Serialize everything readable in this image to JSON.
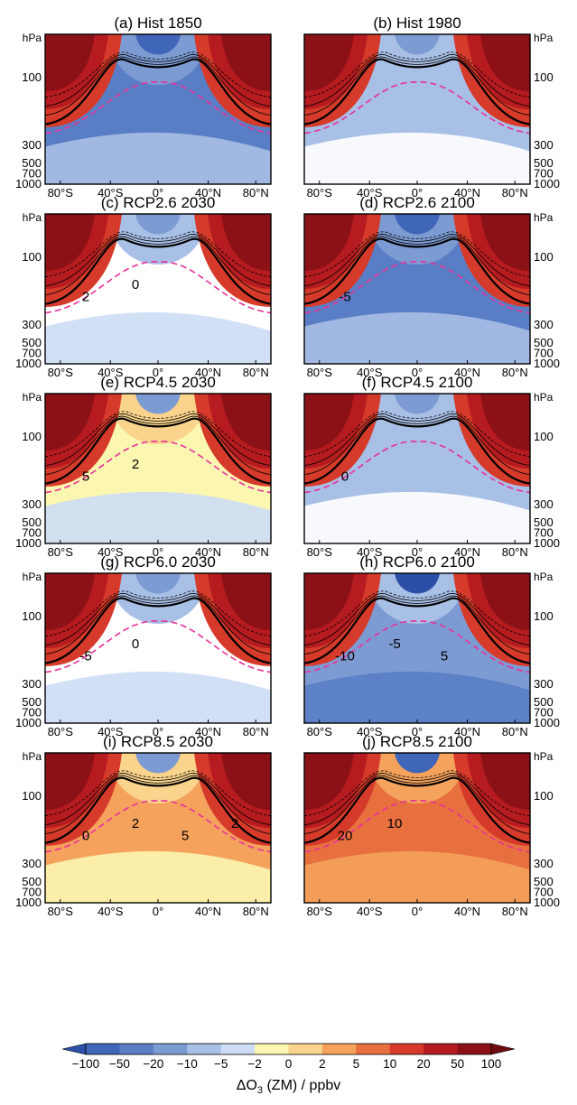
{
  "figure": {
    "colorbar_label_prefix": "ΔO",
    "colorbar_label_sub": "3",
    "colorbar_label_suffix": " (ZM) / ppbv"
  },
  "chart_data": [
    {
      "type": "heatmap",
      "title": "(a) Hist 1850",
      "fill": "neg",
      "xticks": [
        "80°S",
        "40°S",
        "0°",
        "40°N",
        "80°N"
      ],
      "yaxis_unit": "hPa",
      "yticks": [
        "100",
        "300",
        "500",
        "700",
        "1000"
      ],
      "contour_labels": []
    },
    {
      "type": "heatmap",
      "title": "(b) Hist 1980",
      "fill": "lightneg",
      "xticks": [
        "80°S",
        "40°S",
        "0°",
        "40°N",
        "80°N"
      ],
      "yaxis_unit": "hPa",
      "yticks": [
        "100",
        "300",
        "500",
        "700",
        "1000"
      ],
      "contour_labels": []
    },
    {
      "type": "heatmap",
      "title": "(c) RCP2.6 2030",
      "fill": "mixedlight",
      "xticks": [
        "80°S",
        "40°S",
        "0°",
        "40°N",
        "80°N"
      ],
      "yaxis_unit": "hPa",
      "yticks": [
        "100",
        "300",
        "500",
        "700",
        "1000"
      ],
      "contour_labels": [
        "2",
        "0"
      ]
    },
    {
      "type": "heatmap",
      "title": "(d) RCP2.6 2100",
      "fill": "neg",
      "xticks": [
        "80°S",
        "40°S",
        "0°",
        "40°N",
        "80°N"
      ],
      "yaxis_unit": "hPa",
      "yticks": [
        "100",
        "300",
        "500",
        "700",
        "1000"
      ],
      "contour_labels": [
        "-5"
      ]
    },
    {
      "type": "heatmap",
      "title": "(e) RCP4.5 2030",
      "fill": "pospale",
      "xticks": [
        "80°S",
        "40°S",
        "0°",
        "40°N",
        "80°N"
      ],
      "yaxis_unit": "hPa",
      "yticks": [
        "100",
        "300",
        "500",
        "700",
        "1000"
      ],
      "contour_labels": [
        "5",
        "2"
      ]
    },
    {
      "type": "heatmap",
      "title": "(f) RCP4.5 2100",
      "fill": "lightneg",
      "xticks": [
        "80°S",
        "40°S",
        "0°",
        "40°N",
        "80°N"
      ],
      "yaxis_unit": "hPa",
      "yticks": [
        "100",
        "300",
        "500",
        "700",
        "1000"
      ],
      "contour_labels": [
        "0"
      ]
    },
    {
      "type": "heatmap",
      "title": "(g) RCP6.0 2030",
      "fill": "mixedlight",
      "xticks": [
        "80°S",
        "40°S",
        "0°",
        "40°N",
        "80°N"
      ],
      "yaxis_unit": "hPa",
      "yticks": [
        "100",
        "300",
        "500",
        "700",
        "1000"
      ],
      "contour_labels": [
        "-5",
        "0"
      ]
    },
    {
      "type": "heatmap",
      "title": "(h) RCP6.0 2100",
      "fill": "neg2",
      "xticks": [
        "80°S",
        "40°S",
        "0°",
        "40°N",
        "80°N"
      ],
      "yaxis_unit": "hPa",
      "yticks": [
        "100",
        "300",
        "500",
        "700",
        "1000"
      ],
      "contour_labels": [
        "-10",
        "-5",
        "5"
      ]
    },
    {
      "type": "heatmap",
      "title": "(i) RCP8.5 2030",
      "fill": "pos",
      "xticks": [
        "80°S",
        "40°S",
        "0°",
        "40°N",
        "80°N"
      ],
      "yaxis_unit": "hPa",
      "yticks": [
        "100",
        "300",
        "500",
        "700",
        "1000"
      ],
      "contour_labels": [
        "0",
        "2",
        "5",
        "2"
      ]
    },
    {
      "type": "heatmap",
      "title": "(j) RCP8.5 2100",
      "fill": "pos2",
      "xticks": [
        "80°S",
        "40°S",
        "0°",
        "40°N",
        "80°N"
      ],
      "yaxis_unit": "hPa",
      "yticks": [
        "100",
        "300",
        "500",
        "700",
        "1000"
      ],
      "contour_labels": [
        "20",
        "10"
      ]
    }
  ],
  "colorbar": {
    "levels": [
      "-100",
      "-50",
      "-20",
      "-10",
      "-5",
      "-2",
      "0",
      "2",
      "5",
      "10",
      "20",
      "50",
      "100"
    ],
    "colors": [
      "#2b4fa6",
      "#3f66b8",
      "#5a7ec5",
      "#7d9bd3",
      "#a8bfe6",
      "#cdddf5",
      "#fbf6b0",
      "#fad48c",
      "#f4a25c",
      "#e8703f",
      "#d63a2a",
      "#b51b1f",
      "#8c1117",
      "#6e0b11"
    ]
  }
}
